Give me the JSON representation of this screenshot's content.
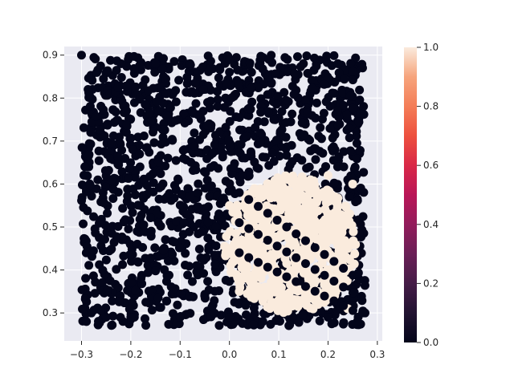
{
  "chart_data": {
    "type": "scatter",
    "title": "",
    "xlabel": "",
    "ylabel": "",
    "xlim": [
      -0.335,
      0.31
    ],
    "ylim": [
      0.235,
      0.92
    ],
    "x_ticks": [
      "−0.3",
      "−0.2",
      "−0.1",
      "0.0",
      "0.1",
      "0.2",
      "0.3"
    ],
    "x_tick_values": [
      -0.3,
      -0.2,
      -0.1,
      0.0,
      0.1,
      0.2,
      0.3
    ],
    "y_ticks": [
      "0.3",
      "0.4",
      "0.5",
      "0.6",
      "0.7",
      "0.8",
      "0.9"
    ],
    "y_tick_values": [
      0.3,
      0.4,
      0.5,
      0.6,
      0.7,
      0.8,
      0.9
    ],
    "grid": true,
    "colorbar": {
      "ticks": [
        "0.0",
        "0.2",
        "0.4",
        "0.6",
        "0.8",
        "1.0"
      ],
      "tick_values": [
        0.0,
        0.2,
        0.4,
        0.6,
        0.8,
        1.0
      ],
      "range": [
        0.0,
        1.0
      ],
      "colormap": "rocket"
    },
    "colors": {
      "low": "#03051a",
      "high": "#faebdd",
      "background": "#eaeaf2",
      "grid": "#ffffff"
    },
    "series": [
      {
        "value": 0.0,
        "region": {
          "x_range": [
            -0.3,
            0.275
          ],
          "y_range": [
            0.27,
            0.9
          ]
        },
        "x": [
          -0.3,
          -0.29,
          -0.28,
          -0.22,
          -0.15,
          -0.08,
          0.0,
          0.08,
          0.15,
          0.22,
          0.27,
          0.275,
          -0.29,
          -0.25,
          -0.2,
          -0.1,
          0.0,
          0.1,
          0.2,
          0.27
        ],
        "y": [
          0.9,
          0.62,
          0.3,
          0.88,
          0.88,
          0.88,
          0.89,
          0.89,
          0.88,
          0.88,
          0.87,
          0.3,
          0.28,
          0.29,
          0.29,
          0.29,
          0.29,
          0.29,
          0.29,
          0.3
        ]
      },
      {
        "value": 1.0,
        "region": {
          "x_range": [
            -0.01,
            0.26
          ],
          "y_range": [
            0.3,
            0.62
          ]
        },
        "x": [
          0.0,
          0.05,
          0.1,
          0.15,
          0.2,
          0.25,
          0.0,
          0.06,
          0.12,
          0.18,
          0.24,
          0.02,
          0.1,
          0.18,
          0.24
        ],
        "y": [
          0.55,
          0.55,
          0.58,
          0.61,
          0.62,
          0.6,
          0.45,
          0.45,
          0.45,
          0.45,
          0.45,
          0.35,
          0.33,
          0.32,
          0.31
        ]
      }
    ]
  }
}
